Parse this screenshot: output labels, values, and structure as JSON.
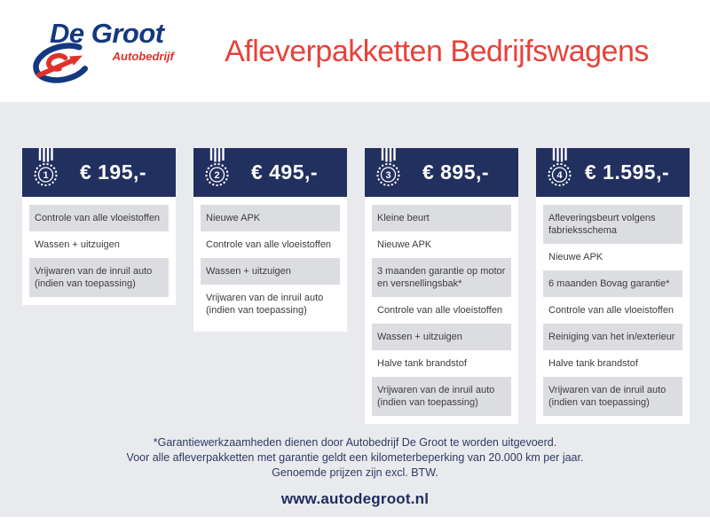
{
  "brand": {
    "name": "De Groot",
    "subtitle": "Autobedrijf"
  },
  "page_title": "Afleverpakketten Bedrijfswagens",
  "packages": [
    {
      "rank": "1",
      "price": "€ 195,-",
      "items": [
        "Controle van alle vloeistoffen",
        "Wassen + uitzuigen",
        "Vrijwaren van de inruil auto (indien van toepassing)"
      ]
    },
    {
      "rank": "2",
      "price": "€ 495,-",
      "items": [
        "Nieuwe APK",
        "Controle van alle vloeistoffen",
        "Wassen + uitzuigen",
        "Vrijwaren van de inruil auto (indien van toepassing)"
      ]
    },
    {
      "rank": "3",
      "price": "€ 895,-",
      "items": [
        "Kleine beurt",
        "Nieuwe APK",
        "3 maanden garantie op motor en versnellingsbak*",
        "Controle van alle vloeistoffen",
        "Wassen + uitzuigen",
        "Halve tank brandstof",
        "Vrijwaren van de inruil auto (indien van toepassing)"
      ]
    },
    {
      "rank": "4",
      "price": "€ 1.595,-",
      "items": [
        "Afleveringsbeurt volgens fabrieksschema",
        "Nieuwe APK",
        "6 maanden Bovag garantie*",
        "Controle van alle vloeistoffen",
        "Reiniging van het in/exterieur",
        "Halve tank brandstof",
        "Vrijwaren van de inruil auto (indien van toepassing)"
      ]
    }
  ],
  "footer": {
    "notes": [
      "*Garantiewerkzaamheden dienen door Autobedrijf De Groot te worden uitgevoerd.",
      "Voor alle afleverpakketten met garantie geldt een kilometerbeperking van 20.000 km per jaar.",
      "Genoemde prijzen zijn excl. BTW."
    ],
    "website": "www.autodegroot.nl"
  },
  "colors": {
    "navy_header": "#22305f",
    "title_red": "#e8413a",
    "logo_blue": "#14387f",
    "logo_red": "#e0312a",
    "page_gray": "#e9eaee",
    "row_gray": "#dcdde1",
    "footer_text": "#2e3a64"
  }
}
